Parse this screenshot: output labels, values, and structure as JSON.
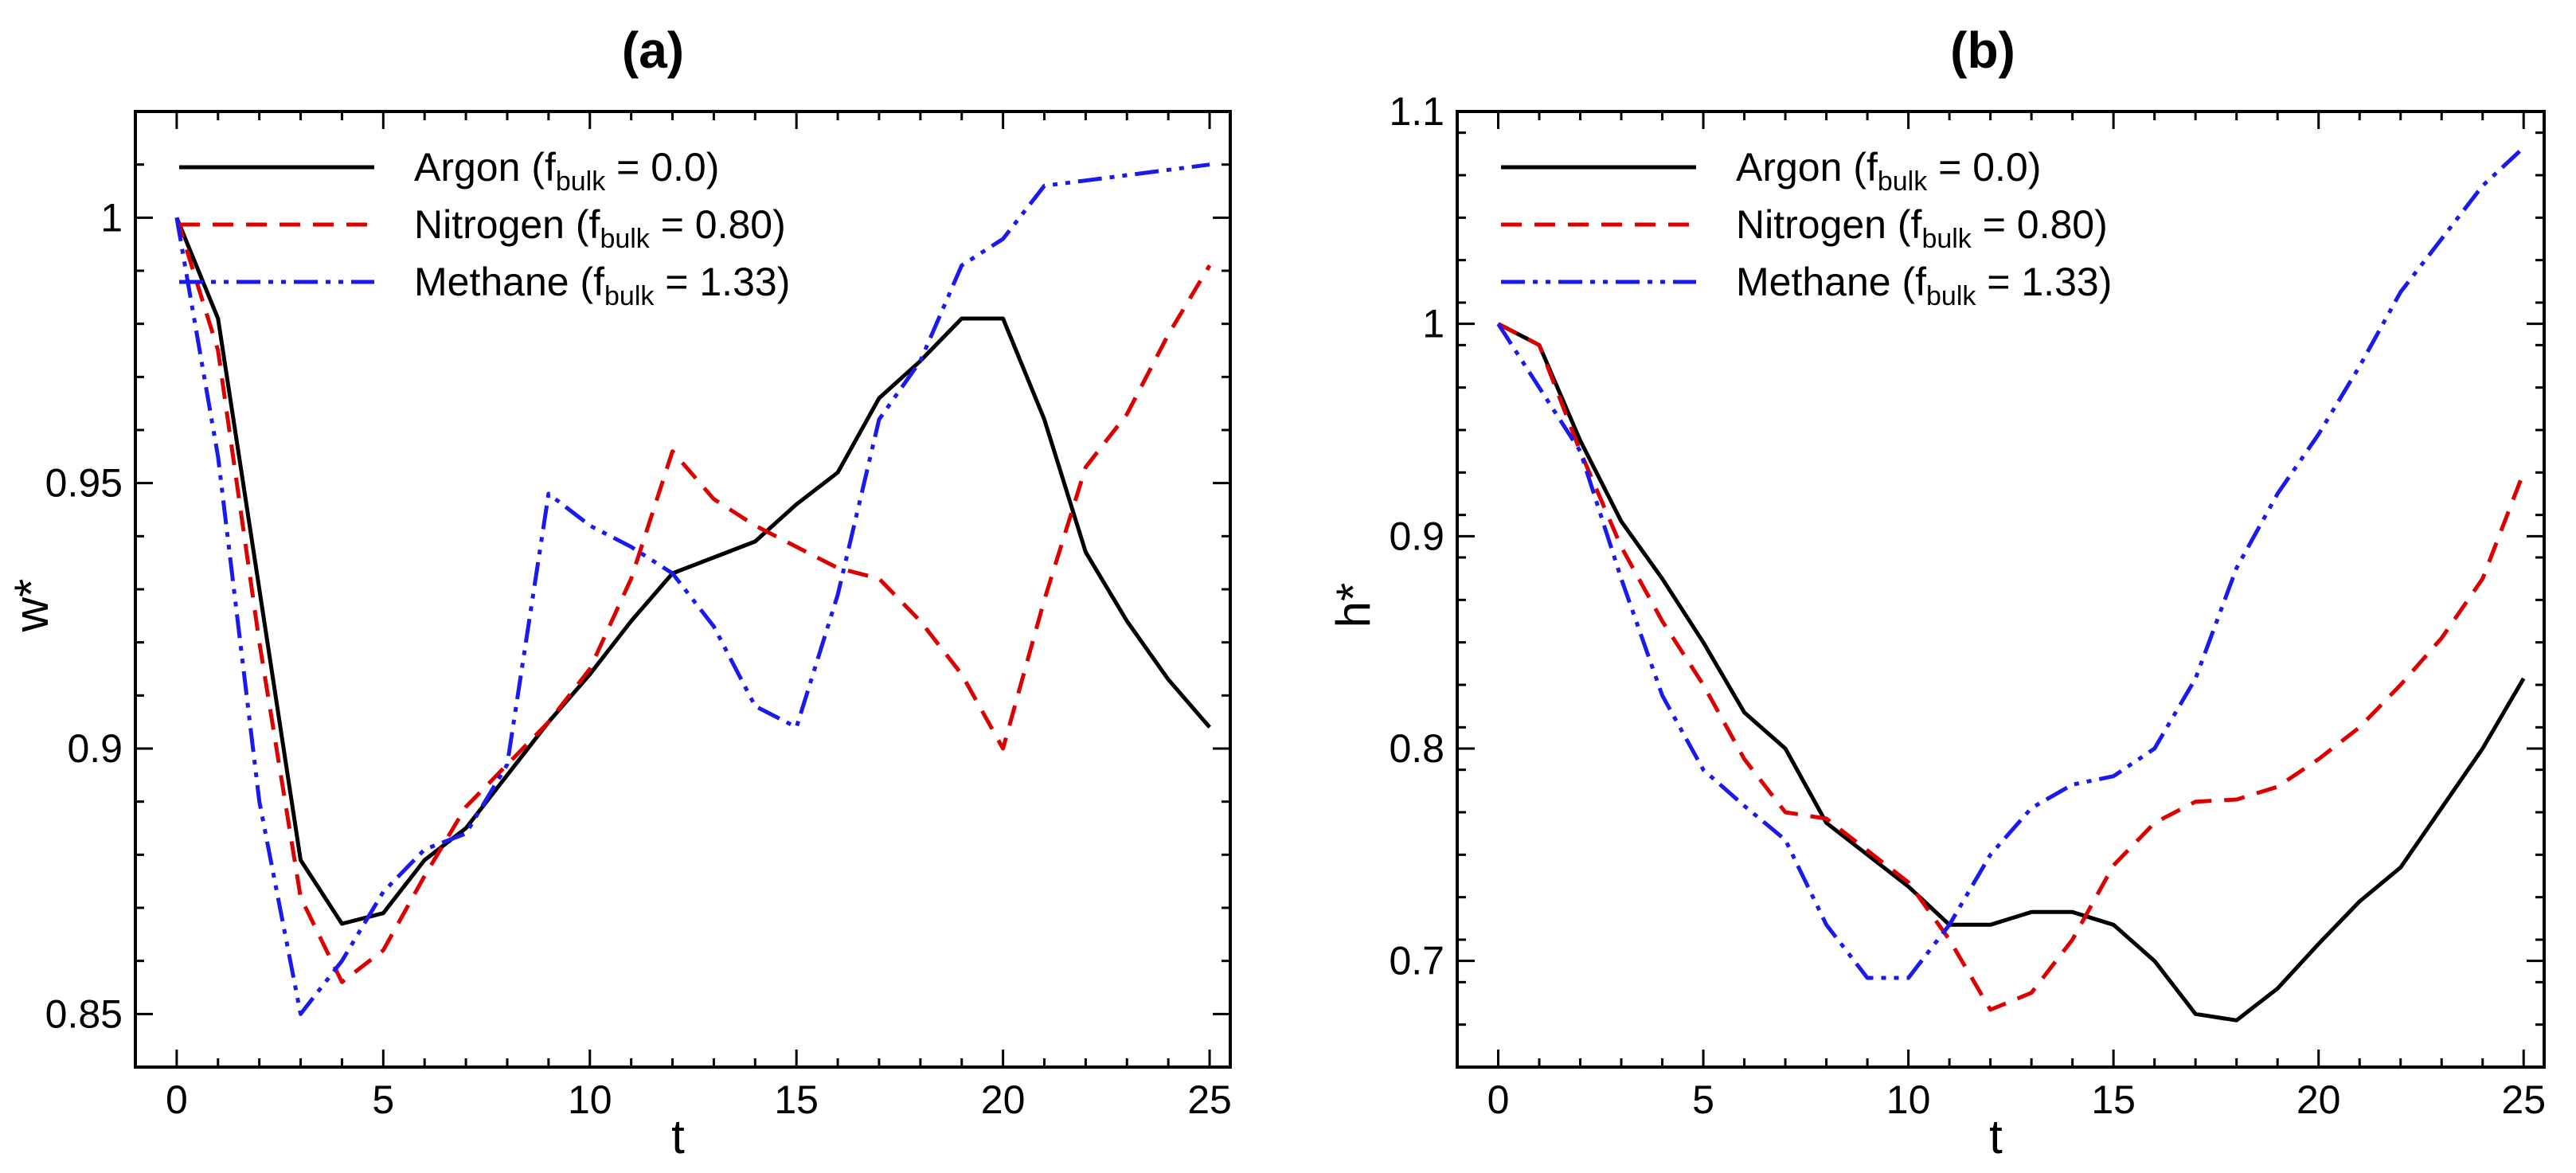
{
  "chart_data": [
    {
      "type": "line",
      "title": "(a)",
      "xlabel": "t",
      "ylabel": "w*",
      "xlim": [
        -1,
        25.5
      ],
      "ylim": [
        0.84,
        1.02
      ],
      "xticks": [
        0,
        5,
        10,
        15,
        20,
        25
      ],
      "xtick_labels": [
        "0",
        "5",
        "10",
        "15",
        "20",
        "25"
      ],
      "yticks": [
        0.85,
        0.9,
        0.95,
        1
      ],
      "ytick_labels": [
        "0.85",
        "0.9",
        "0.95",
        "1"
      ],
      "legend_position": "top-left",
      "series": [
        {
          "name": "Argon",
          "legend": {
            "prefix": "Argon (f",
            "sub": "bulk",
            "suffix": " = 0.0)"
          },
          "color": "#000000",
          "dash": "solid",
          "x": [
            0,
            1,
            2,
            3,
            4,
            5,
            6,
            7,
            8,
            9,
            10,
            11,
            12,
            13,
            14,
            15,
            16,
            17,
            18,
            19,
            20,
            21,
            22,
            23,
            24,
            25
          ],
          "y": [
            1.0,
            0.981,
            0.93,
            0.879,
            0.867,
            0.869,
            0.879,
            0.885,
            0.895,
            0.905,
            0.914,
            0.924,
            0.933,
            0.936,
            0.939,
            0.946,
            0.952,
            0.966,
            0.973,
            0.981,
            0.981,
            0.962,
            0.937,
            0.924,
            0.913,
            0.904
          ]
        },
        {
          "name": "Nitrogen",
          "legend": {
            "prefix": "Nitrogen (f",
            "sub": "bulk",
            "suffix": " = 0.80)"
          },
          "color": "#dd0000",
          "dash": "dashed",
          "x": [
            0,
            1,
            2,
            3,
            4,
            5,
            6,
            7,
            8,
            9,
            10,
            11,
            12,
            13,
            14,
            15,
            16,
            17,
            18,
            19,
            20,
            21,
            22,
            23,
            24,
            25
          ],
          "y": [
            1.0,
            0.975,
            0.92,
            0.872,
            0.856,
            0.862,
            0.876,
            0.889,
            0.897,
            0.905,
            0.915,
            0.932,
            0.956,
            0.947,
            0.942,
            0.938,
            0.934,
            0.932,
            0.924,
            0.914,
            0.9,
            0.928,
            0.953,
            0.963,
            0.978,
            0.991
          ]
        },
        {
          "name": "Methane",
          "legend": {
            "prefix": "Methane (f",
            "sub": "bulk",
            "suffix": " = 1.33)"
          },
          "color": "#1a1aee",
          "dash": "dashdotdot",
          "x": [
            0,
            1,
            2,
            3,
            4,
            5,
            6,
            7,
            8,
            9,
            10,
            11,
            12,
            13,
            14,
            15,
            16,
            17,
            18,
            19,
            20,
            21,
            22,
            23,
            24,
            25
          ],
          "y": [
            1.0,
            0.955,
            0.89,
            0.85,
            0.86,
            0.873,
            0.881,
            0.884,
            0.897,
            0.948,
            0.942,
            0.938,
            0.933,
            0.923,
            0.908,
            0.904,
            0.929,
            0.962,
            0.973,
            0.991,
            0.996,
            1.006,
            1.007,
            1.008,
            1.009,
            1.01
          ]
        }
      ]
    },
    {
      "type": "line",
      "title": "(b)",
      "xlabel": "t",
      "ylabel": "h*",
      "xlim": [
        -1,
        25.5
      ],
      "ylim": [
        0.65,
        1.1
      ],
      "xticks": [
        0,
        5,
        10,
        15,
        20,
        25
      ],
      "xtick_labels": [
        "0",
        "5",
        "10",
        "15",
        "20",
        "25"
      ],
      "yticks": [
        0.7,
        0.8,
        0.9,
        1,
        1.1
      ],
      "ytick_labels": [
        "0.7",
        "0.8",
        "0.9",
        "1",
        "1.1"
      ],
      "legend_position": "top-left",
      "series": [
        {
          "name": "Argon",
          "legend": {
            "prefix": "Argon (f",
            "sub": "bulk",
            "suffix": " = 0.0)"
          },
          "color": "#000000",
          "dash": "solid",
          "x": [
            0,
            1,
            2,
            3,
            4,
            5,
            6,
            7,
            8,
            9,
            10,
            11,
            12,
            13,
            14,
            15,
            16,
            17,
            18,
            19,
            20,
            21,
            22,
            23,
            24,
            25
          ],
          "y": [
            1.0,
            0.99,
            0.945,
            0.907,
            0.88,
            0.85,
            0.817,
            0.8,
            0.765,
            0.75,
            0.735,
            0.717,
            0.717,
            0.723,
            0.723,
            0.717,
            0.7,
            0.675,
            0.672,
            0.687,
            0.708,
            0.728,
            0.744,
            0.772,
            0.8,
            0.833
          ]
        },
        {
          "name": "Nitrogen",
          "legend": {
            "prefix": "Nitrogen (f",
            "sub": "bulk",
            "suffix": " = 0.80)"
          },
          "color": "#dd0000",
          "dash": "dashed",
          "x": [
            0,
            1,
            2,
            3,
            4,
            5,
            6,
            7,
            8,
            9,
            10,
            11,
            12,
            13,
            14,
            15,
            16,
            17,
            18,
            19,
            20,
            21,
            22,
            23,
            24,
            25
          ],
          "y": [
            1.0,
            0.99,
            0.94,
            0.895,
            0.86,
            0.83,
            0.795,
            0.77,
            0.767,
            0.752,
            0.737,
            0.71,
            0.677,
            0.685,
            0.71,
            0.745,
            0.765,
            0.775,
            0.776,
            0.782,
            0.795,
            0.81,
            0.83,
            0.852,
            0.88,
            0.93
          ]
        },
        {
          "name": "Methane",
          "legend": {
            "prefix": "Methane (f",
            "sub": "bulk",
            "suffix": " = 1.33)"
          },
          "color": "#1a1aee",
          "dash": "dashdotdot",
          "x": [
            0,
            1,
            2,
            3,
            4,
            5,
            6,
            7,
            8,
            9,
            10,
            11,
            12,
            13,
            14,
            15,
            16,
            17,
            18,
            19,
            20,
            21,
            22,
            23,
            24,
            25
          ],
          "y": [
            1.0,
            0.97,
            0.94,
            0.88,
            0.825,
            0.79,
            0.773,
            0.757,
            0.717,
            0.692,
            0.692,
            0.717,
            0.75,
            0.772,
            0.783,
            0.787,
            0.8,
            0.833,
            0.885,
            0.92,
            0.948,
            0.98,
            1.015,
            1.04,
            1.065,
            1.083
          ]
        }
      ]
    }
  ]
}
